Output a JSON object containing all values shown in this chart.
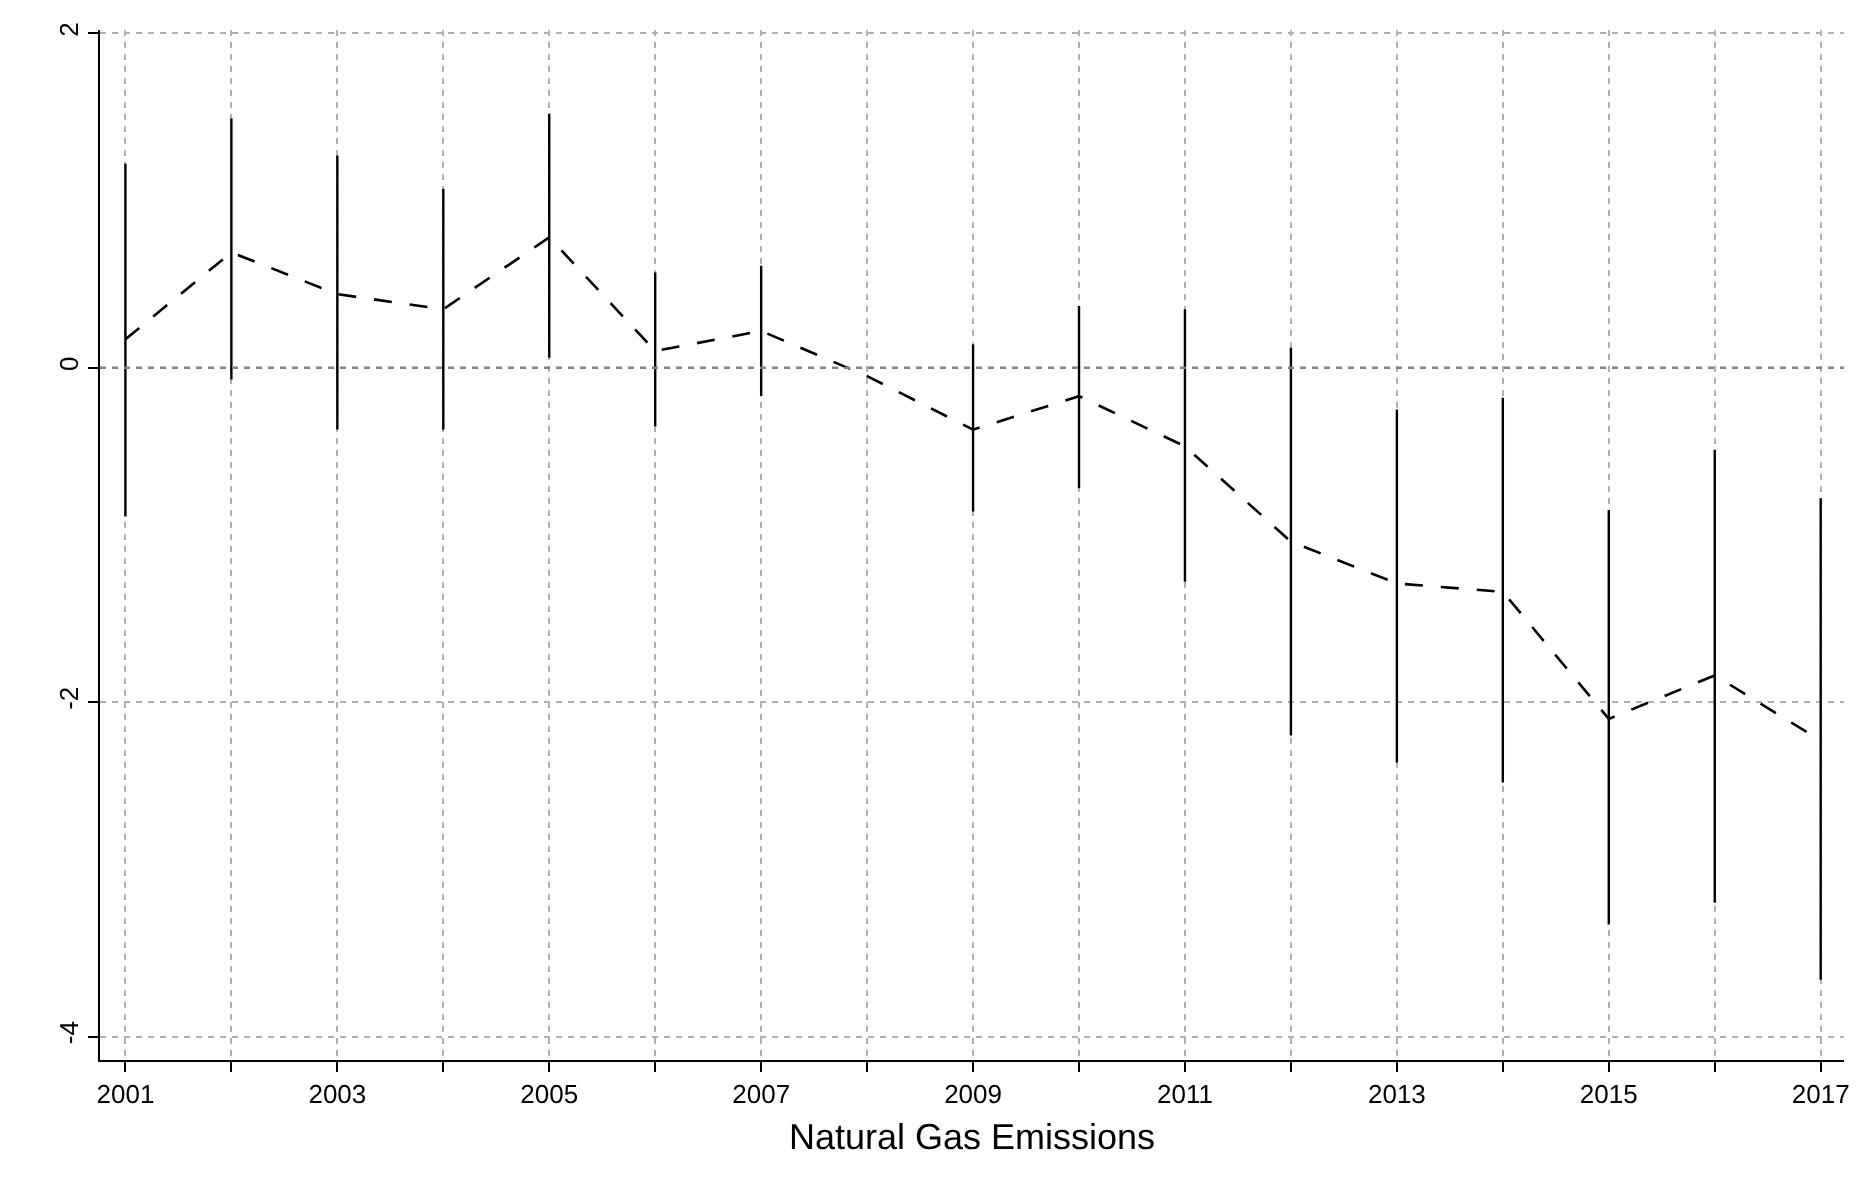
{
  "chart_data": {
    "type": "line",
    "xlabel": "Natural Gas Emissions",
    "x": [
      2001,
      2002,
      2003,
      2004,
      2005,
      2006,
      2007,
      2008,
      2009,
      2010,
      2011,
      2012,
      2013,
      2014,
      2015,
      2016,
      2017
    ],
    "series": [
      {
        "color": "#000000",
        "values": [
          0.17,
          0.69,
          0.44,
          0.35,
          0.78,
          0.1,
          0.22,
          -0.05,
          -0.37,
          -0.17,
          -0.47,
          -1.04,
          -1.29,
          -1.34,
          -2.1,
          -1.84,
          -2.23
        ],
        "errors": [
          [
            -0.89,
            1.22
          ],
          [
            -0.07,
            1.49
          ],
          [
            -0.37,
            1.27
          ],
          [
            -0.37,
            1.07
          ],
          [
            0.06,
            1.52
          ],
          [
            -0.35,
            0.57
          ],
          [
            -0.17,
            0.61
          ],
          null,
          [
            -0.86,
            0.14
          ],
          [
            -0.72,
            0.37
          ],
          [
            -1.28,
            0.35
          ],
          [
            -2.2,
            0.12
          ],
          [
            -2.36,
            -0.25
          ],
          [
            -2.48,
            -0.18
          ],
          [
            -3.33,
            -0.85
          ],
          [
            -3.2,
            -0.49
          ],
          [
            -3.66,
            -0.78
          ]
        ]
      }
    ],
    "xlim": [
      2000.76,
      2017.22
    ],
    "xticks": [
      2001,
      {
        "value": 2002,
        "label": null
      },
      2003,
      {
        "value": 2004,
        "label": null
      },
      2005,
      {
        "value": 2006,
        "label": null
      },
      2007,
      {
        "value": 2008,
        "label": null
      },
      2009,
      {
        "value": 2010,
        "label": null
      },
      2011,
      {
        "value": 2012,
        "label": null
      },
      2013,
      {
        "value": 2014,
        "label": null
      },
      2015,
      {
        "value": 2016,
        "label": null
      },
      2017
    ],
    "ylim": [
      -4.14,
      2.02
    ],
    "yticks": [
      -4,
      -2,
      0,
      2
    ],
    "ref_lines": [
      {
        "axis": "y",
        "value": 0,
        "color": "#808080",
        "line_style": "dotted"
      }
    ],
    "grid": true,
    "marker": "none",
    "line_style": "dashed"
  }
}
